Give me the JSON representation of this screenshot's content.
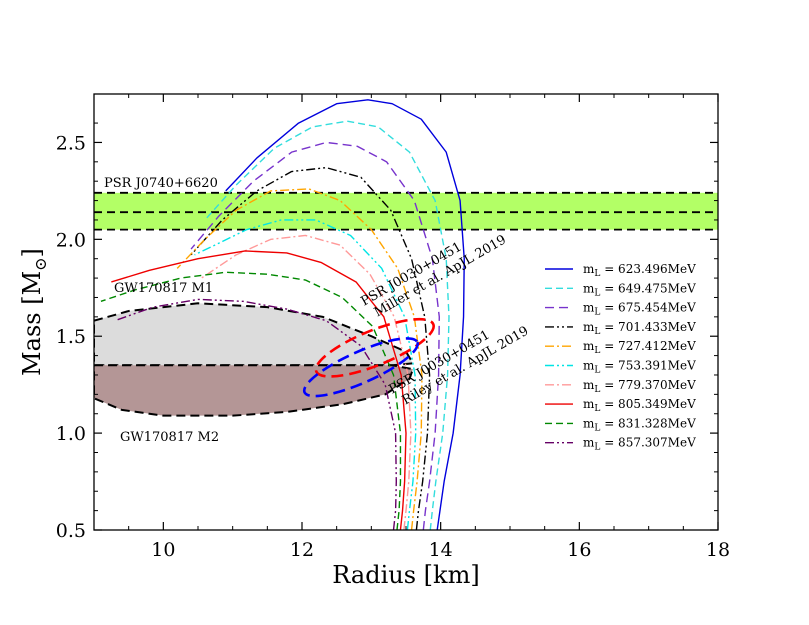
{
  "chart_data": {
    "type": "line",
    "title": "",
    "xlabel": "Radius [km]",
    "ylabel": "Mass [M",
    "ylabel_subscript": "⊙",
    "ylabel_close": "]",
    "xlim": [
      9,
      18
    ],
    "ylim": [
      0.5,
      2.75
    ],
    "xticks": [
      10,
      12,
      14,
      16,
      18
    ],
    "yticks": [
      0.5,
      1.0,
      1.5,
      2.0,
      2.5
    ],
    "xtick_labels": [
      "10",
      "12",
      "14",
      "16",
      "18"
    ],
    "ytick_labels": [
      "0.5",
      "1.0",
      "1.5",
      "2.0",
      "2.5"
    ],
    "legend_position": "right",
    "series": [
      {
        "name": "m",
        "sub": "L",
        "value_text": " = 623.496MeV",
        "color": "#0000dd",
        "dash": "solid",
        "r": [
          13.95,
          13.99,
          14.05,
          14.18,
          14.28,
          14.33,
          14.34,
          14.28,
          14.08,
          13.72,
          13.3,
          12.95,
          12.5,
          11.95,
          11.35,
          10.9
        ],
        "m": [
          0.5,
          0.6,
          0.75,
          1.0,
          1.3,
          1.6,
          1.9,
          2.2,
          2.45,
          2.62,
          2.7,
          2.72,
          2.7,
          2.6,
          2.42,
          2.25
        ]
      },
      {
        "name": "m",
        "sub": "L",
        "value_text": " = 649.475MeV",
        "color": "#33dddd",
        "dash": "7 4",
        "r": [
          13.85,
          13.88,
          13.93,
          14.03,
          14.1,
          14.12,
          14.08,
          13.92,
          13.55,
          13.1,
          12.65,
          12.15,
          11.6,
          11.05,
          10.6
        ],
        "m": [
          0.5,
          0.6,
          0.75,
          1.0,
          1.3,
          1.6,
          1.9,
          2.2,
          2.45,
          2.58,
          2.61,
          2.58,
          2.47,
          2.28,
          2.1
        ]
      },
      {
        "name": "m",
        "sub": "L",
        "value_text": " = 675.454MeV",
        "color": "#7733cc",
        "dash": "9 5",
        "r": [
          13.75,
          13.78,
          13.84,
          13.92,
          13.97,
          13.98,
          13.88,
          13.62,
          13.22,
          12.8,
          12.35,
          11.85,
          11.3,
          10.8,
          10.4
        ],
        "m": [
          0.5,
          0.6,
          0.75,
          1.0,
          1.3,
          1.6,
          1.9,
          2.2,
          2.4,
          2.48,
          2.5,
          2.45,
          2.3,
          2.12,
          1.95
        ]
      },
      {
        "name": "m",
        "sub": "L",
        "value_text": " = 701.433MeV",
        "color": "#000000",
        "dash": "9 3 2 3 2 3",
        "r": [
          13.65,
          13.68,
          13.74,
          13.81,
          13.84,
          13.77,
          13.58,
          13.28,
          12.85,
          12.35,
          11.85,
          11.35,
          10.85,
          10.4
        ],
        "m": [
          0.5,
          0.6,
          0.75,
          1.0,
          1.3,
          1.6,
          1.9,
          2.15,
          2.32,
          2.37,
          2.35,
          2.25,
          2.1,
          1.92
        ]
      },
      {
        "name": "m",
        "sub": "L",
        "value_text": " = 727.412MeV",
        "color": "#ffa500",
        "dash": "9 3 2 3",
        "r": [
          13.58,
          13.61,
          13.66,
          13.72,
          13.73,
          13.62,
          13.38,
          13.0,
          12.55,
          12.1,
          11.55,
          11.05,
          10.6,
          10.2
        ],
        "m": [
          0.5,
          0.6,
          0.75,
          1.0,
          1.3,
          1.6,
          1.85,
          2.05,
          2.2,
          2.26,
          2.25,
          2.15,
          2.0,
          1.85
        ]
      },
      {
        "name": "m",
        "sub": "L",
        "value_text": " = 753.391MeV",
        "color": "#00e5e5",
        "dash": "9 3 2 3 2 3",
        "r": [
          13.52,
          13.55,
          13.6,
          13.64,
          13.63,
          13.48,
          13.15,
          12.7,
          12.2,
          11.7,
          11.2,
          10.8,
          10.45
        ],
        "m": [
          0.5,
          0.6,
          0.75,
          1.0,
          1.3,
          1.6,
          1.85,
          2.02,
          2.1,
          2.1,
          2.05,
          1.98,
          1.92
        ]
      },
      {
        "name": "m",
        "sub": "L",
        "value_text": " = 779.370MeV",
        "color": "#ff9999",
        "dash": "9 3 2 3",
        "r": [
          13.47,
          13.5,
          13.54,
          13.57,
          13.53,
          13.33,
          12.98,
          12.55,
          12.05,
          11.55,
          11.05,
          10.55
        ],
        "m": [
          0.5,
          0.6,
          0.75,
          1.0,
          1.3,
          1.6,
          1.82,
          1.97,
          2.02,
          2.0,
          1.92,
          1.8
        ]
      },
      {
        "name": "m",
        "sub": "L",
        "value_text": " = 805.349MeV",
        "color": "#ee0000",
        "dash": "solid",
        "r": [
          13.42,
          13.45,
          13.48,
          13.5,
          13.43,
          13.18,
          12.78,
          12.28,
          11.78,
          11.18,
          10.5,
          9.8,
          9.25
        ],
        "m": [
          0.5,
          0.6,
          0.75,
          1.0,
          1.3,
          1.6,
          1.78,
          1.88,
          1.93,
          1.94,
          1.9,
          1.84,
          1.78
        ]
      },
      {
        "name": "m",
        "sub": "L",
        "value_text": " = 831.328MeV",
        "color": "#008800",
        "dash": "7 4",
        "r": [
          13.37,
          13.4,
          13.42,
          13.42,
          13.32,
          13.02,
          12.58,
          12.05,
          11.5,
          10.9,
          10.25,
          9.6,
          9.1
        ],
        "m": [
          0.5,
          0.6,
          0.75,
          1.0,
          1.3,
          1.55,
          1.7,
          1.79,
          1.82,
          1.83,
          1.8,
          1.74,
          1.68
        ]
      },
      {
        "name": "m",
        "sub": "L",
        "value_text": " = 857.307MeV",
        "color": "#660066",
        "dash": "9 3 2 3 2 3",
        "r": [
          13.32,
          13.35,
          13.36,
          13.35,
          13.2,
          12.85,
          12.35,
          11.78,
          11.15,
          10.5,
          9.85,
          9.3
        ],
        "m": [
          0.5,
          0.6,
          0.75,
          1.0,
          1.25,
          1.45,
          1.58,
          1.64,
          1.68,
          1.69,
          1.65,
          1.58
        ]
      }
    ],
    "psr_band": {
      "label": "PSR J0740+6620",
      "lower": 2.05,
      "center": 2.14,
      "upper": 2.24,
      "fill": "#b3ff66",
      "xlim": [
        9,
        18
      ]
    },
    "gw_regions": [
      {
        "label": "GW170817 M1",
        "fill": "#dcdcdc",
        "r": [
          9.0,
          9.5,
          10.5,
          11.5,
          12.3,
          13.0,
          13.5,
          13.6,
          13.3,
          12.5,
          11.5,
          10.5,
          9.8,
          9.0
        ],
        "m": [
          1.58,
          1.63,
          1.67,
          1.65,
          1.6,
          1.5,
          1.42,
          1.36,
          1.35,
          1.35,
          1.35,
          1.35,
          1.35,
          1.35
        ]
      },
      {
        "label": "GW170817 M2",
        "fill": "#b49696",
        "r": [
          9.0,
          9.8,
          10.5,
          11.5,
          12.5,
          13.3,
          13.6,
          13.55,
          13.2,
          12.6,
          11.8,
          11.0,
          10.0,
          9.4,
          9.0
        ],
        "m": [
          1.35,
          1.35,
          1.35,
          1.35,
          1.35,
          1.35,
          1.33,
          1.28,
          1.2,
          1.15,
          1.11,
          1.09,
          1.09,
          1.12,
          1.18
        ]
      }
    ],
    "nicer_ellipses": [
      {
        "label_line1": "PSR J0030+0451",
        "label_line2": "Miller et al. ApJL 2019",
        "color": "#ff0000",
        "cx": 13.05,
        "cy": 1.44,
        "a": 1.82,
        "b": 0.09,
        "angle_deg": 22
      },
      {
        "label_line1": "PSR J0030+0451",
        "label_line2": "Riley et al. ApJL 2019",
        "color": "#0000ff",
        "cx": 12.85,
        "cy": 1.34,
        "a": 1.78,
        "b": 0.08,
        "angle_deg": 24
      }
    ]
  }
}
